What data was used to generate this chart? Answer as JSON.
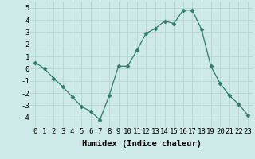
{
  "x": [
    0,
    1,
    2,
    3,
    4,
    5,
    6,
    7,
    8,
    9,
    10,
    11,
    12,
    13,
    14,
    15,
    16,
    17,
    18,
    19,
    20,
    21,
    22,
    23
  ],
  "y": [
    0.5,
    0.0,
    -0.8,
    -1.5,
    -2.3,
    -3.1,
    -3.5,
    -4.2,
    -2.2,
    0.2,
    0.2,
    1.5,
    2.9,
    3.3,
    3.9,
    3.7,
    4.8,
    4.8,
    3.2,
    0.2,
    -1.2,
    -2.2,
    -2.9,
    -3.8
  ],
  "line_color": "#2e7d6e",
  "marker": "D",
  "marker_size": 2.5,
  "bg_color": "#ceeae8",
  "grid_color": "#b8d4d2",
  "xlabel": "Humidex (Indice chaleur)",
  "ylim": [
    -4.8,
    5.5
  ],
  "xlim": [
    -0.5,
    23.5
  ],
  "yticks": [
    -4,
    -3,
    -2,
    -1,
    0,
    1,
    2,
    3,
    4,
    5
  ],
  "xticks": [
    0,
    1,
    2,
    3,
    4,
    5,
    6,
    7,
    8,
    9,
    10,
    11,
    12,
    13,
    14,
    15,
    16,
    17,
    18,
    19,
    20,
    21,
    22,
    23
  ],
  "tick_fontsize": 6.5,
  "xlabel_fontsize": 7.5
}
